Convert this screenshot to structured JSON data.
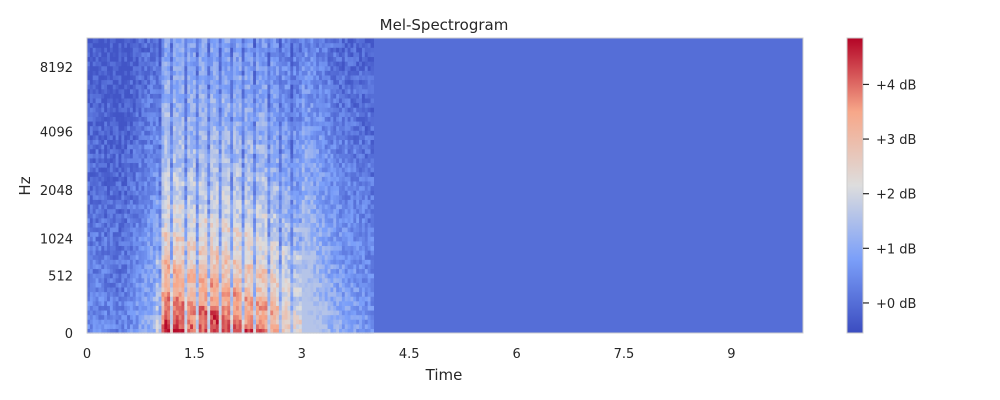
{
  "chart_data": {
    "type": "heatmap",
    "title": "Mel-Spectrogram",
    "xlabel": "Time",
    "ylabel": "Hz",
    "xlim": [
      0,
      10
    ],
    "x_ticks": [
      0,
      1.5,
      3,
      4.5,
      6,
      7.5,
      9
    ],
    "x_tick_labels": [
      "0",
      "1.5",
      "3",
      "4.5",
      "6",
      "7.5",
      "9"
    ],
    "y_scale": "mel",
    "ylim": [
      0,
      11025
    ],
    "y_ticks": [
      0,
      512,
      1024,
      2048,
      4096,
      8192
    ],
    "y_tick_labels": [
      "0",
      "512",
      "1024",
      "2048",
      "4096",
      "8192"
    ],
    "colormap": "coolwarm",
    "colorbar": {
      "range": [
        -0.55,
        4.85
      ],
      "ticks": [
        0,
        1,
        2,
        3,
        4
      ],
      "tick_labels": [
        "+0 dB",
        "+1 dB",
        "+2 dB",
        "+3 dB",
        "+4 dB"
      ]
    },
    "grid": false,
    "signal": {
      "active_time": [
        0,
        4.0
      ],
      "speech_time": [
        0.95,
        3.0
      ],
      "silence_after": 4.0,
      "silence_value": 0.0,
      "energy_profile": [
        {
          "t": 0.0,
          "v": 0.5
        },
        {
          "t": 0.5,
          "v": 0.3
        },
        {
          "t": 0.95,
          "v": 1.2
        },
        {
          "t": 1.1,
          "v": 4.2
        },
        {
          "t": 1.5,
          "v": 3.8
        },
        {
          "t": 1.8,
          "v": 4.0
        },
        {
          "t": 2.2,
          "v": 3.6
        },
        {
          "t": 2.5,
          "v": 3.4
        },
        {
          "t": 2.9,
          "v": 2.2
        },
        {
          "t": 3.5,
          "v": 1.0
        },
        {
          "t": 4.0,
          "v": 0.6
        }
      ]
    }
  }
}
